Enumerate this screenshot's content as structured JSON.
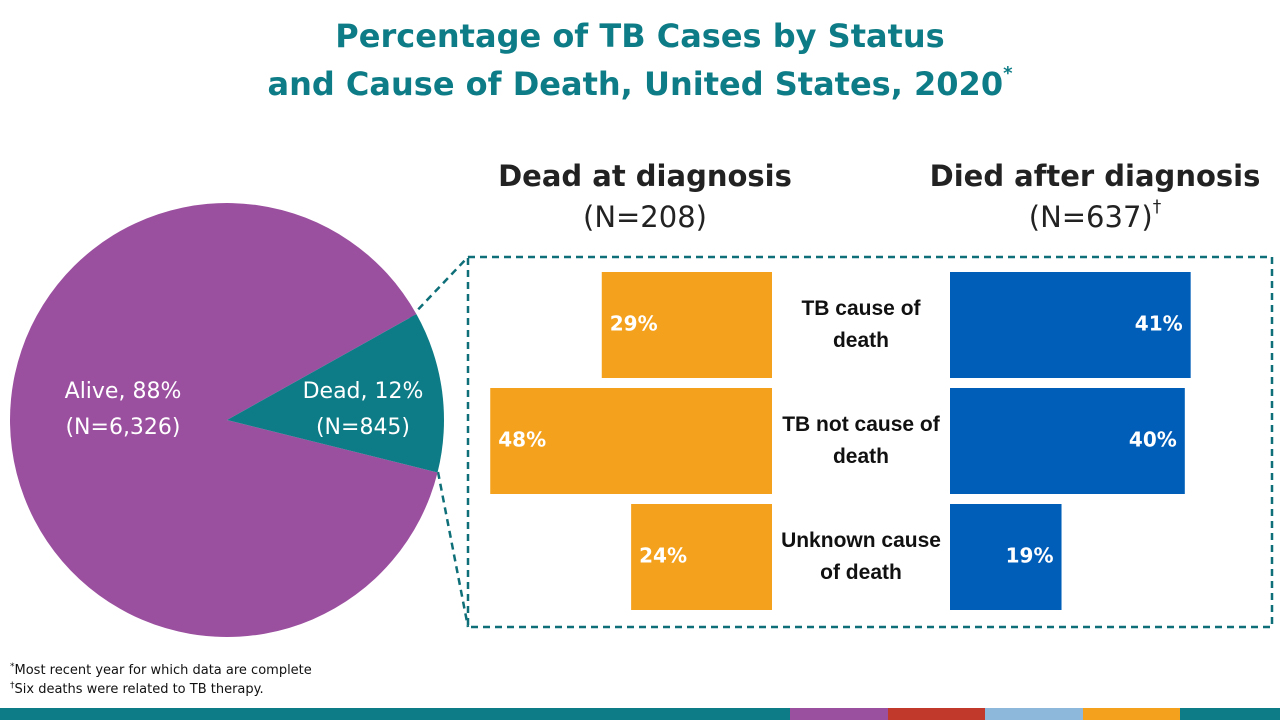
{
  "header": {
    "title": [
      "Percentage of TB Cases by Status",
      "and Cause of Death, United States, 2020"
    ],
    "title_mark": "*"
  },
  "chart_data": [
    {
      "type": "pie",
      "values": [
        88,
        12
      ],
      "value_labels": [
        "Alive, 88%",
        "Dead, 12%"
      ],
      "n_labels": [
        "(N=6,326)",
        "(N=845)"
      ],
      "colors": [
        "#9b4f9f",
        "#0e7c86"
      ]
    },
    {
      "type": "bar",
      "orientation": "horizontal",
      "categories": [
        "TB cause of death",
        "TB not cause of death",
        "Unknown cause of death"
      ],
      "series": [
        {
          "name": "Dead at diagnosis",
          "subtitle": "(N=208)",
          "color": "#f4a11d",
          "values": [
            29,
            48,
            24
          ],
          "value_labels": [
            "29%",
            "48%",
            "24%"
          ]
        },
        {
          "name": "Died after diagnosis",
          "subtitle": "(N=637)",
          "subtitle_mark": "†",
          "color": "#005eb8",
          "values": [
            41,
            40,
            19
          ],
          "value_labels": [
            "41%",
            "40%",
            "19%"
          ]
        }
      ]
    }
  ],
  "footnotes": [
    {
      "mark": "*",
      "text": "Most recent year for which data are complete"
    },
    {
      "mark": "†",
      "text": "Six deaths were related to TB therapy."
    }
  ]
}
